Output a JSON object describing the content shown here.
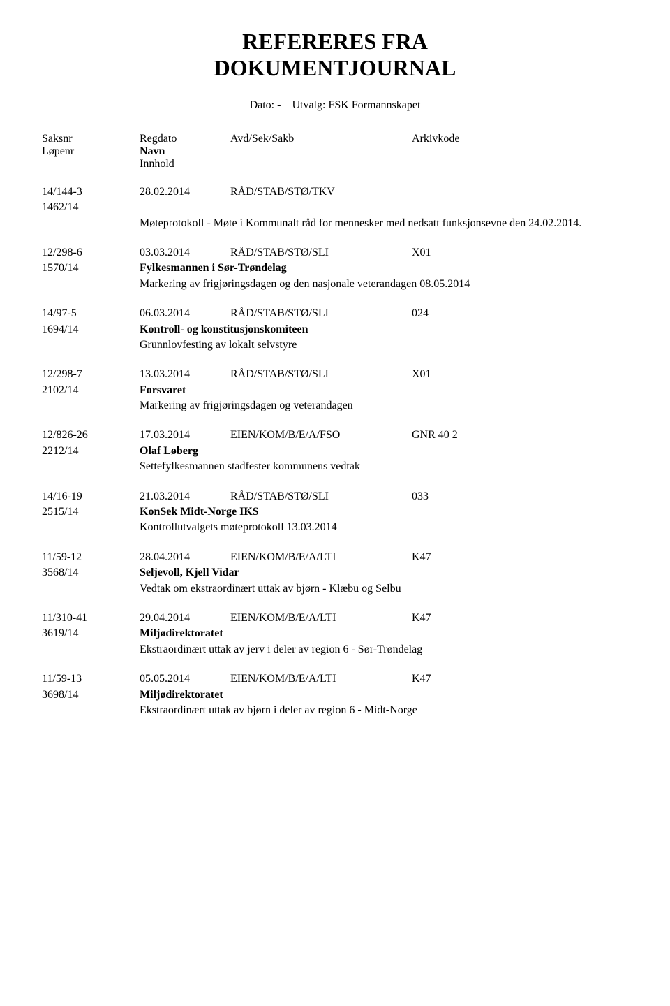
{
  "title_line1": "REFERERES FRA",
  "title_line2": "DOKUMENTJOURNAL",
  "subtitle_prefix": "Dato: -",
  "subtitle_suffix": "Utvalg: FSK Formannskapet",
  "headers": {
    "saksnr": "Saksnr",
    "lopenr": "Løpenr",
    "regdato": "Regdato",
    "navn": "Navn",
    "innhold": "Innhold",
    "avdsek": "Avd/Sek/Sakb",
    "arkivkode": "Arkivkode"
  },
  "entries": [
    {
      "saksnr": "14/144-3",
      "regdato": "28.02.2014",
      "avdsek": "RÅD/STAB/STØ/TKV",
      "arkiv": "",
      "lopenr": "1462/14",
      "navn": "",
      "content": "Møteprotokoll - Møte i Kommunalt råd for mennesker med nedsatt funksjonsevne den 24.02.2014."
    },
    {
      "saksnr": "12/298-6",
      "regdato": "03.03.2014",
      "avdsek": "RÅD/STAB/STØ/SLI",
      "arkiv": "X01",
      "lopenr": "1570/14",
      "navn": "Fylkesmannen i Sør-Trøndelag",
      "content": "Markering av frigjøringsdagen og den nasjonale veterandagen 08.05.2014"
    },
    {
      "saksnr": "14/97-5",
      "regdato": "06.03.2014",
      "avdsek": "RÅD/STAB/STØ/SLI",
      "arkiv": "024",
      "lopenr": "1694/14",
      "navn": "Kontroll- og konstitusjonskomiteen",
      "content": "Grunnlovfesting av lokalt selvstyre"
    },
    {
      "saksnr": "12/298-7",
      "regdato": "13.03.2014",
      "avdsek": "RÅD/STAB/STØ/SLI",
      "arkiv": "X01",
      "lopenr": "2102/14",
      "navn": "Forsvaret",
      "content": "Markering av frigjøringsdagen og veterandagen"
    },
    {
      "saksnr": "12/826-26",
      "regdato": "17.03.2014",
      "avdsek": "EIEN/KOM/B/E/A/FSO",
      "arkiv": "GNR  40   2",
      "lopenr": "2212/14",
      "navn": "Olaf Løberg",
      "content": "Settefylkesmannen stadfester kommunens vedtak"
    },
    {
      "saksnr": "14/16-19",
      "regdato": "21.03.2014",
      "avdsek": "RÅD/STAB/STØ/SLI",
      "arkiv": "033",
      "lopenr": "2515/14",
      "navn": "KonSek Midt-Norge IKS",
      "content": "Kontrollutvalgets møteprotokoll 13.03.2014"
    },
    {
      "saksnr": "11/59-12",
      "regdato": "28.04.2014",
      "avdsek": "EIEN/KOM/B/E/A/LTI",
      "arkiv": "K47",
      "lopenr": "3568/14",
      "navn": "Seljevoll, Kjell Vidar",
      "content": "Vedtak om ekstraordinært uttak av bjørn - Klæbu og Selbu"
    },
    {
      "saksnr": "11/310-41",
      "regdato": "29.04.2014",
      "avdsek": "EIEN/KOM/B/E/A/LTI",
      "arkiv": "K47",
      "lopenr": "3619/14",
      "navn": "Miljødirektoratet",
      "content": "Ekstraordinært uttak av jerv i deler av region 6 - Sør-Trøndelag"
    },
    {
      "saksnr": "11/59-13",
      "regdato": "05.05.2014",
      "avdsek": "EIEN/KOM/B/E/A/LTI",
      "arkiv": "K47",
      "lopenr": "3698/14",
      "navn": "Miljødirektoratet",
      "content": "Ekstraordinært uttak av bjørn i deler av region 6 - Midt-Norge"
    }
  ]
}
